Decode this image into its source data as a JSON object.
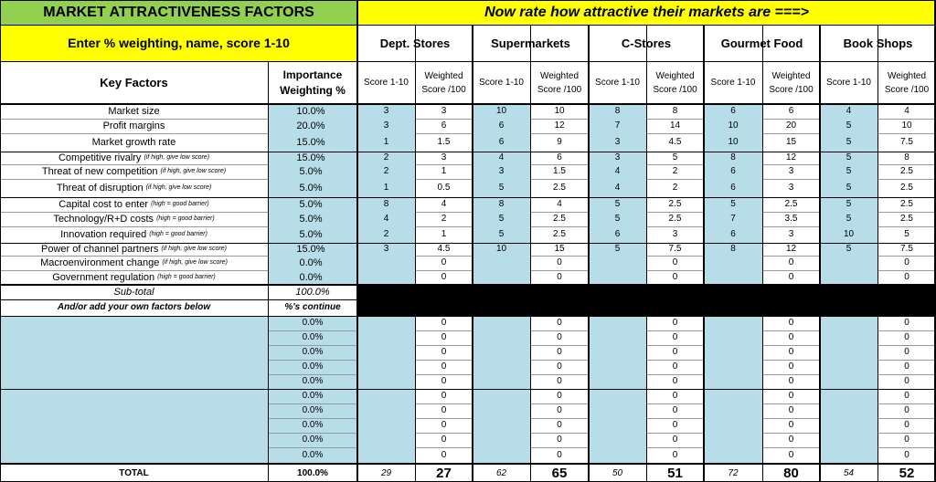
{
  "header": {
    "title": "MARKET ATTRACTIVENESS FACTORS",
    "rate_prompt": "Now rate how attractive their markets are ===>",
    "instruction": "Enter % weighting, name, score 1-10"
  },
  "markets": [
    {
      "name": "Dept. Stores"
    },
    {
      "name": "Supermarkets"
    },
    {
      "name": "C-Stores"
    },
    {
      "name": "Gourmet Food"
    },
    {
      "name": "Book Shops"
    }
  ],
  "columns": {
    "key_factors": "Key Factors",
    "importance_1": "Importance",
    "importance_2": "Weighting %",
    "score": "Score 1-10",
    "weighted_1": "Weighted",
    "weighted_2": "Score /100"
  },
  "factors": [
    {
      "name": "Market size",
      "note": "",
      "weight": "10.0%",
      "cells": [
        [
          "3",
          "3"
        ],
        [
          "10",
          "10"
        ],
        [
          "8",
          "8"
        ],
        [
          "6",
          "6"
        ],
        [
          "4",
          "4"
        ]
      ]
    },
    {
      "name": "Profit margins",
      "note": "",
      "weight": "20.0%",
      "cells": [
        [
          "3",
          "6"
        ],
        [
          "6",
          "12"
        ],
        [
          "7",
          "14"
        ],
        [
          "10",
          "20"
        ],
        [
          "5",
          "10"
        ]
      ]
    },
    {
      "name": "Market growth rate",
      "note": "",
      "weight": "15.0%",
      "cells": [
        [
          "1",
          "1.5"
        ],
        [
          "6",
          "9"
        ],
        [
          "3",
          "4.5"
        ],
        [
          "10",
          "15"
        ],
        [
          "5",
          "7.5"
        ]
      ]
    },
    {
      "name": "Competitive rivalry",
      "note": "(if high, give low score)",
      "weight": "15.0%",
      "cells": [
        [
          "2",
          "3"
        ],
        [
          "4",
          "6"
        ],
        [
          "3",
          "5"
        ],
        [
          "8",
          "12"
        ],
        [
          "5",
          "8"
        ]
      ]
    },
    {
      "name": "Threat of new competition",
      "note": "(if high, give low score)",
      "weight": "5.0%",
      "cells": [
        [
          "2",
          "1"
        ],
        [
          "3",
          "1.5"
        ],
        [
          "4",
          "2"
        ],
        [
          "6",
          "3"
        ],
        [
          "5",
          "2.5"
        ]
      ]
    },
    {
      "name": "Threat of disruption",
      "note": "(if high, give low score)",
      "weight": "5.0%",
      "cells": [
        [
          "1",
          "0.5"
        ],
        [
          "5",
          "2.5"
        ],
        [
          "4",
          "2"
        ],
        [
          "6",
          "3"
        ],
        [
          "5",
          "2.5"
        ]
      ]
    },
    {
      "name": "Capital cost to enter",
      "note": "(high = good barrier)",
      "weight": "5.0%",
      "cells": [
        [
          "8",
          "4"
        ],
        [
          "8",
          "4"
        ],
        [
          "5",
          "2.5"
        ],
        [
          "5",
          "2.5"
        ],
        [
          "5",
          "2.5"
        ]
      ]
    },
    {
      "name": "Technology/R+D costs",
      "note": "(high = good barrier)",
      "weight": "5.0%",
      "cells": [
        [
          "4",
          "2"
        ],
        [
          "5",
          "2.5"
        ],
        [
          "5",
          "2.5"
        ],
        [
          "7",
          "3.5"
        ],
        [
          "5",
          "2.5"
        ]
      ]
    },
    {
      "name": "Innovation required",
      "note": "(high = good barrier)",
      "weight": "5.0%",
      "cells": [
        [
          "2",
          "1"
        ],
        [
          "5",
          "2.5"
        ],
        [
          "6",
          "3"
        ],
        [
          "6",
          "3"
        ],
        [
          "10",
          "5"
        ]
      ]
    },
    {
      "name": "Power of channel partners",
      "note": "(if high, give low score)",
      "weight": "15.0%",
      "cells": [
        [
          "3",
          "4.5"
        ],
        [
          "10",
          "15"
        ],
        [
          "5",
          "7.5"
        ],
        [
          "8",
          "12"
        ],
        [
          "5",
          "7.5"
        ]
      ]
    },
    {
      "name": "Macroenvironment change",
      "note": "(if high, give low score)",
      "weight": "0.0%",
      "cells": [
        [
          "",
          "0"
        ],
        [
          "",
          "0"
        ],
        [
          "",
          "0"
        ],
        [
          "",
          "0"
        ],
        [
          "",
          "0"
        ]
      ]
    },
    {
      "name": "Government regulation",
      "note": "(high = good barrier)",
      "weight": "0.0%",
      "cells": [
        [
          "",
          "0"
        ],
        [
          "",
          "0"
        ],
        [
          "",
          "0"
        ],
        [
          "",
          "0"
        ],
        [
          "",
          "0"
        ]
      ]
    }
  ],
  "subtotal": {
    "label": "Sub-total",
    "value": "100.0%"
  },
  "own_factors": {
    "label": "And/or add your own factors below",
    "note": "%'s continue"
  },
  "custom_rows": [
    {
      "weight": "0.0%",
      "values": [
        "0",
        "0",
        "0",
        "0",
        "0"
      ]
    },
    {
      "weight": "0.0%",
      "values": [
        "0",
        "0",
        "0",
        "0",
        "0"
      ]
    },
    {
      "weight": "0.0%",
      "values": [
        "0",
        "0",
        "0",
        "0",
        "0"
      ]
    },
    {
      "weight": "0.0%",
      "values": [
        "0",
        "0",
        "0",
        "0",
        "0"
      ]
    },
    {
      "weight": "0.0%",
      "values": [
        "0",
        "0",
        "0",
        "0",
        "0"
      ]
    },
    {
      "weight": "0.0%",
      "values": [
        "0",
        "0",
        "0",
        "0",
        "0"
      ]
    },
    {
      "weight": "0.0%",
      "values": [
        "0",
        "0",
        "0",
        "0",
        "0"
      ]
    },
    {
      "weight": "0.0%",
      "values": [
        "0",
        "0",
        "0",
        "0",
        "0"
      ]
    },
    {
      "weight": "0.0%",
      "values": [
        "0",
        "0",
        "0",
        "0",
        "0"
      ]
    },
    {
      "weight": "0.0%",
      "values": [
        "0",
        "0",
        "0",
        "0",
        "0"
      ]
    }
  ],
  "total": {
    "label": "TOTAL",
    "weight": "100.0%",
    "cells": [
      [
        "29",
        "27"
      ],
      [
        "62",
        "65"
      ],
      [
        "50",
        "51"
      ],
      [
        "72",
        "80"
      ],
      [
        "54",
        "52"
      ]
    ]
  },
  "colors": {
    "green": "#92d050",
    "yellow": "#ffff00",
    "blue": "#b7dee8",
    "black": "#000000"
  }
}
